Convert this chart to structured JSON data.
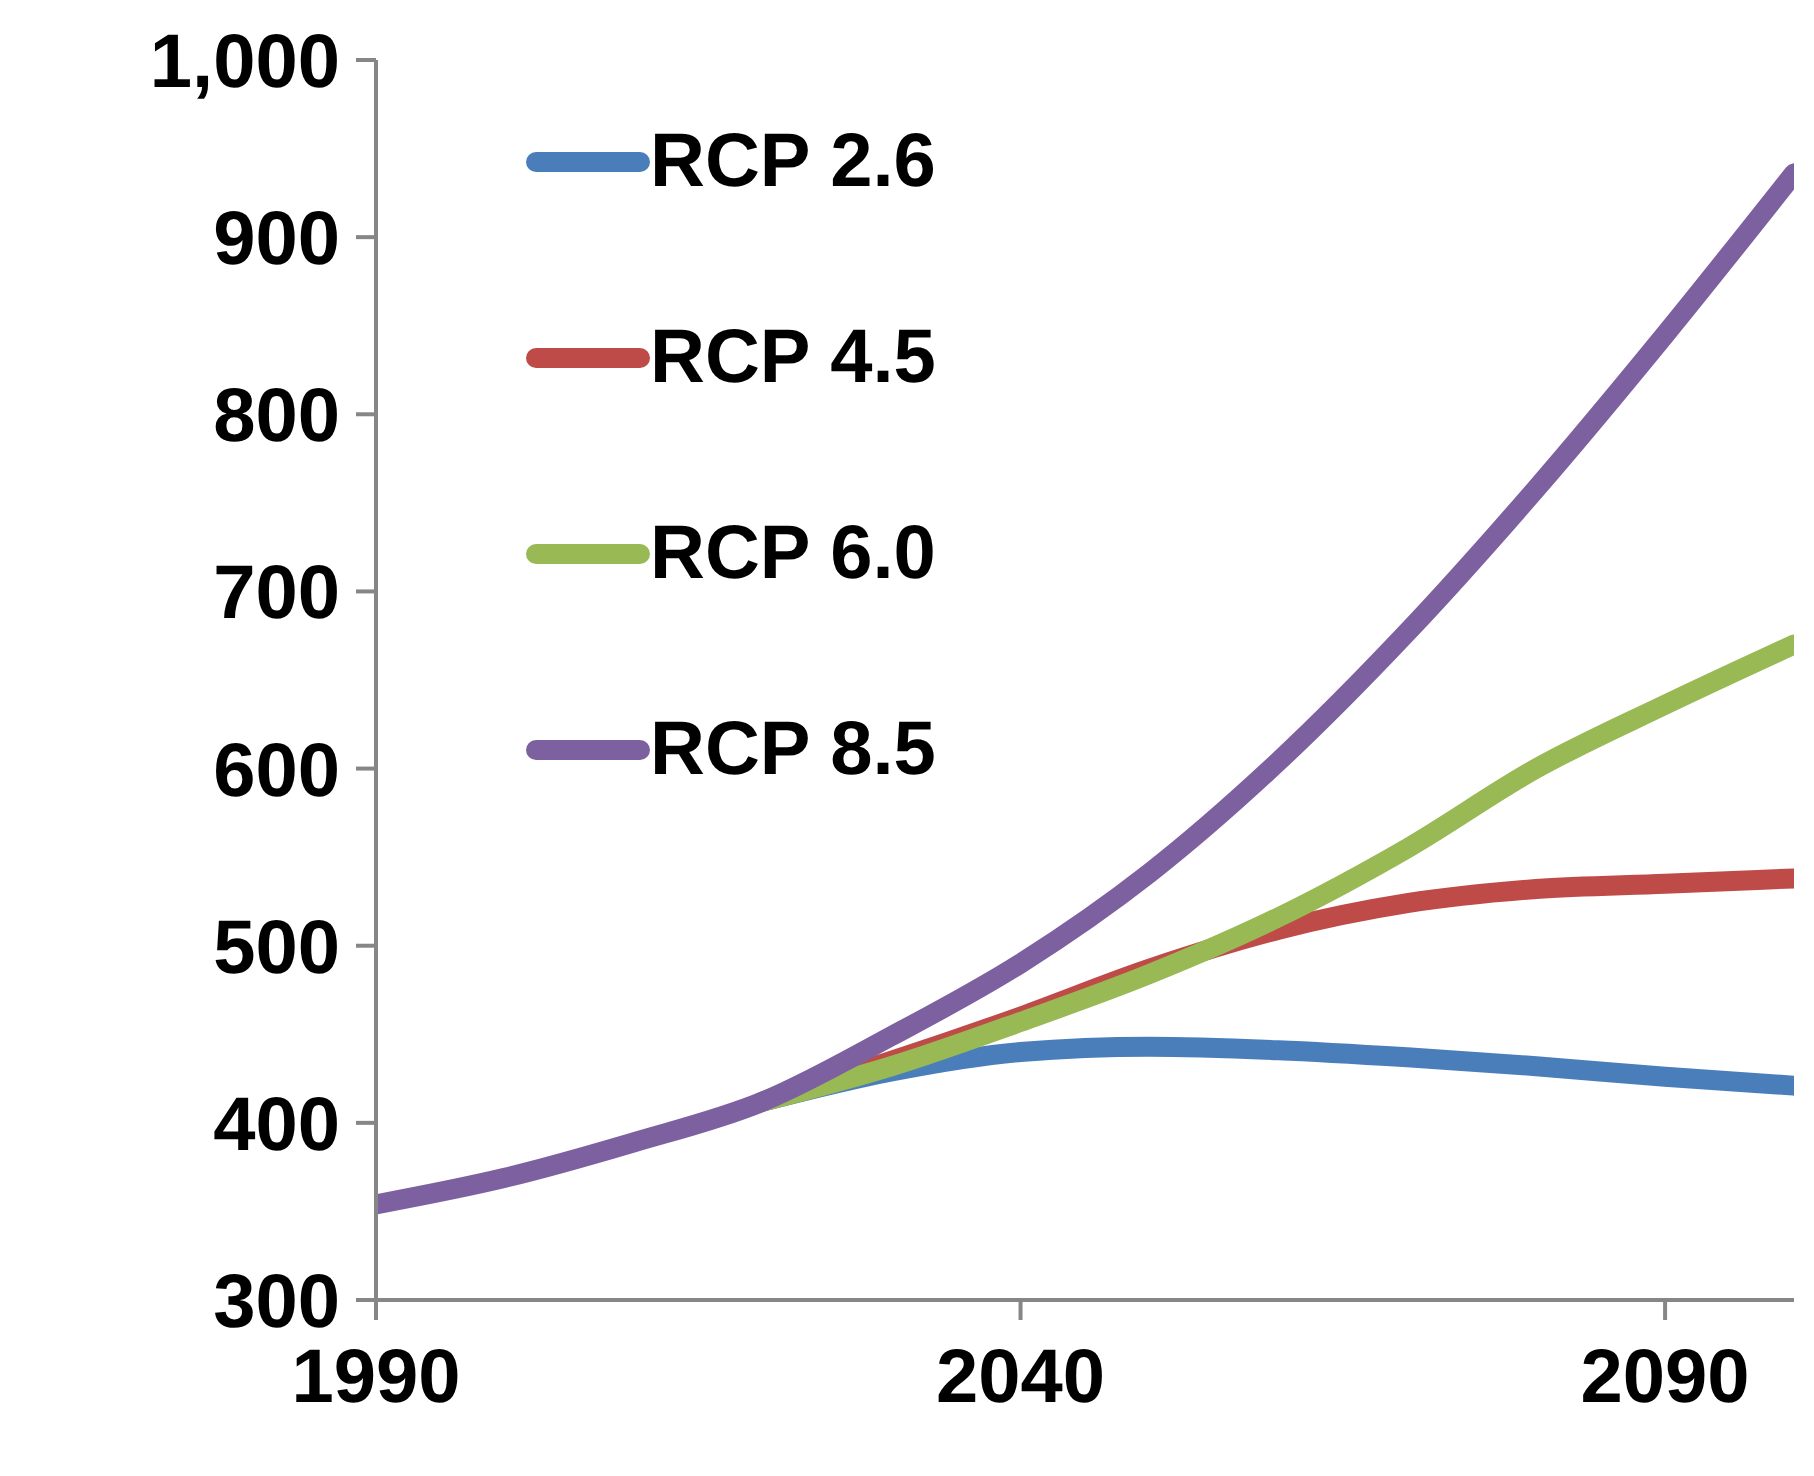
{
  "chart_data": {
    "type": "line",
    "x": [
      1990,
      2000,
      2010,
      2020,
      2030,
      2040,
      2050,
      2060,
      2070,
      2080,
      2090,
      2100
    ],
    "series": [
      {
        "name": "RCP 2.6",
        "color": "#4a7ebb",
        "values": [
          null,
          null,
          null,
          412,
          429,
          440,
          443,
          441,
          437,
          432,
          426,
          421
        ]
      },
      {
        "name": "RCP 4.5",
        "color": "#be4b48",
        "values": [
          null,
          null,
          null,
          412,
          435,
          460,
          487,
          509,
          524,
          532,
          535,
          538
        ]
      },
      {
        "name": "RCP 6.0",
        "color": "#98b954",
        "values": [
          null,
          null,
          null,
          412,
          432,
          457,
          484,
          516,
          555,
          600,
          636,
          670
        ]
      },
      {
        "name": "RCP 8.5",
        "color": "#7d60a0",
        "values": [
          354,
          369,
          389,
          412,
          449,
          490,
          541,
          604,
          677,
          758,
          845,
          936
        ]
      }
    ],
    "xlim": [
      1990,
      2100
    ],
    "xticks": [
      1990,
      2040,
      2090
    ],
    "ylim": [
      300,
      1000
    ],
    "yticks": [
      300,
      400,
      500,
      600,
      700,
      800,
      900,
      {
        "value": 1000,
        "label": "1,000"
      }
    ],
    "grid": false,
    "legend": "top left",
    "marker": "none",
    "line_style": "solid"
  }
}
